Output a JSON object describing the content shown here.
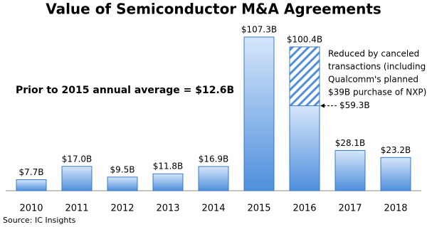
{
  "chart_data": {
    "type": "bar",
    "title": "Value of Semiconductor M&A Agreements",
    "categories": [
      "2010",
      "2011",
      "2012",
      "2013",
      "2014",
      "2015",
      "2016",
      "2017",
      "2018"
    ],
    "values": [
      7.7,
      17.0,
      9.5,
      11.8,
      16.9,
      107.3,
      100.4,
      28.1,
      23.2
    ],
    "value_labels": [
      "$7.7B",
      "$17.0B",
      "$9.5B",
      "$11.8B",
      "$16.9B",
      "$107.3B",
      "$100.4B",
      "$28.1B",
      "$23.2B"
    ],
    "solid_values": [
      null,
      null,
      null,
      null,
      null,
      null,
      59.3,
      null,
      null
    ],
    "solid_value_labels": [
      null,
      null,
      null,
      null,
      null,
      null,
      "$59.3B",
      null,
      null
    ],
    "color": "#4f8fdc",
    "annotation": "Prior to 2015 annual average = $12.6B",
    "note_lines": [
      "Reduced by canceled",
      "transactions (including",
      "Qualcomm's planned",
      "$39B purchase of NXP)."
    ],
    "source": "Source: IC Insights"
  }
}
